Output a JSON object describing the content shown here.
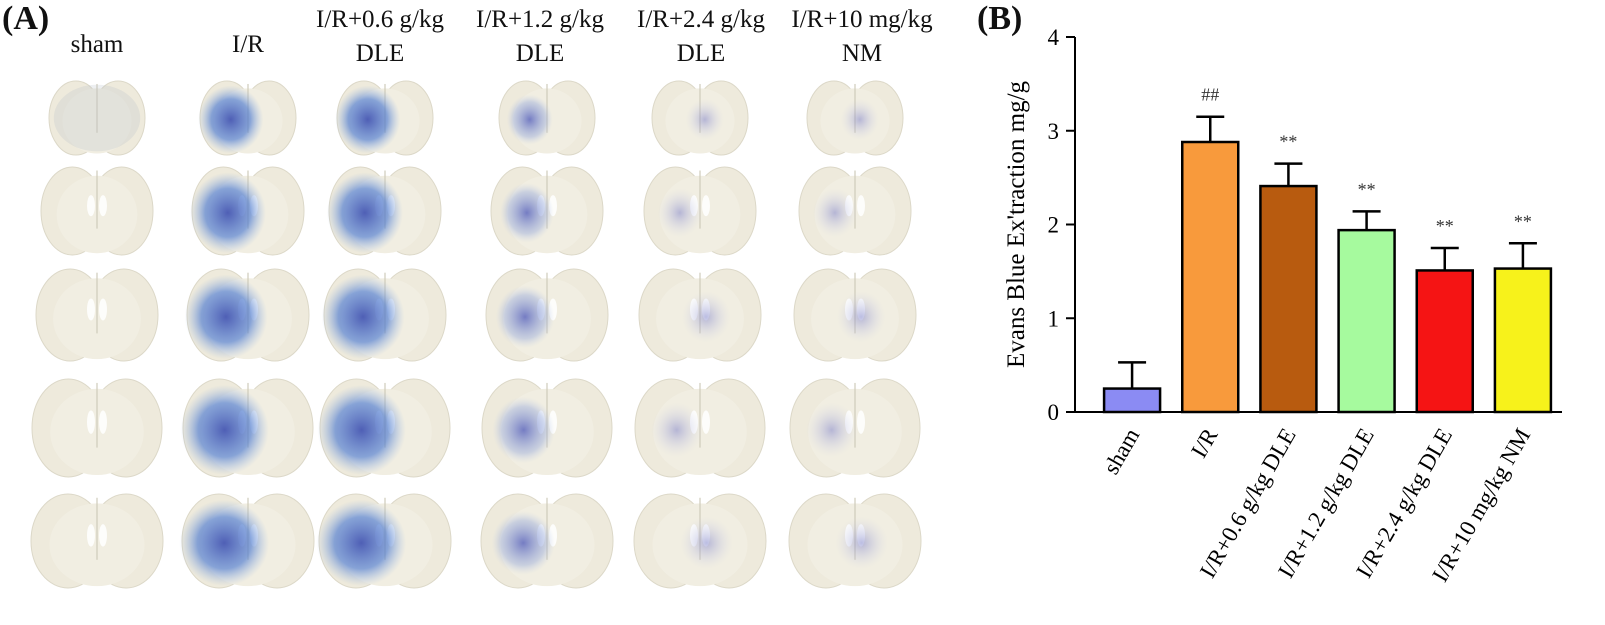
{
  "panel_a": {
    "label": "(A)",
    "columns": [
      {
        "lines": [
          "sham"
        ],
        "stain": "none"
      },
      {
        "lines": [
          "I/R"
        ],
        "stain": "heavy"
      },
      {
        "lines": [
          "I/R+0.6 g/kg",
          "DLE"
        ],
        "stain": "heavy"
      },
      {
        "lines": [
          "I/R+1.2 g/kg",
          "DLE"
        ],
        "stain": "moderate"
      },
      {
        "lines": [
          "I/R+2.4 g/kg",
          "DLE"
        ],
        "stain": "light"
      },
      {
        "lines": [
          "I/R+10 mg/kg",
          "NM"
        ],
        "stain": "light"
      }
    ],
    "rows": 5
  },
  "panel_b": {
    "label": "(B)"
  },
  "chart_data": {
    "type": "bar",
    "ylabel": "Evans Blue Ex'traction mg/g",
    "xlabel": "",
    "ylim": [
      0,
      4
    ],
    "yticks": [
      0,
      1,
      2,
      3,
      4
    ],
    "grid": false,
    "categories": [
      "sham",
      "I/R",
      "I/R+0.6 g/kg DLE",
      "I/R+1.2 g/kg DLE",
      "I/R+2.4 g/kg DLE",
      "I/R+10 mg/kg NM"
    ],
    "values": [
      0.25,
      2.88,
      2.41,
      1.94,
      1.51,
      1.53
    ],
    "errors": [
      0.28,
      0.27,
      0.24,
      0.2,
      0.24,
      0.27
    ],
    "annotations": [
      "",
      "##",
      "**",
      "**",
      "**",
      "**"
    ],
    "colors": [
      "#8b8bf3",
      "#f89a3c",
      "#b85b0f",
      "#a6fa9e",
      "#f51414",
      "#f7f21b"
    ]
  }
}
